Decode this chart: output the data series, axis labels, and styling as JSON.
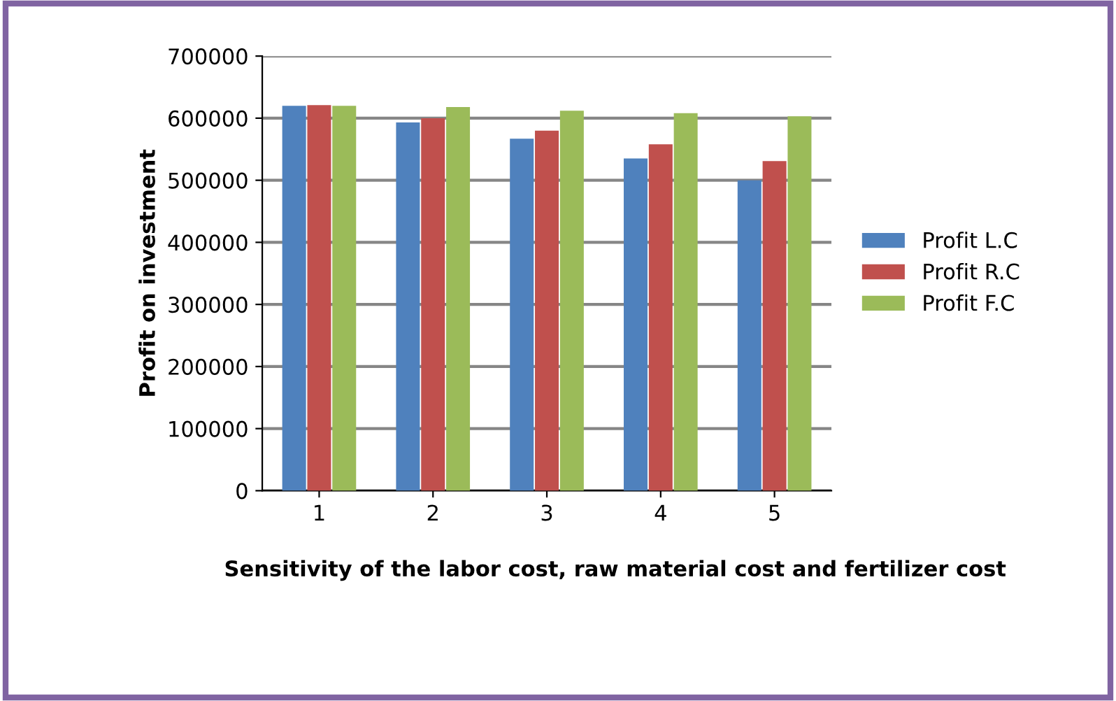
{
  "chart_data": {
    "type": "bar",
    "xlabel": "Sensitivity of the labor cost, raw material cost and fertilizer cost",
    "ylabel": "Profit on investment",
    "categories": [
      "1",
      "2",
      "3",
      "4",
      "5"
    ],
    "series": [
      {
        "name": "Profit L.C",
        "color": "#4f81bd",
        "values": [
          620000,
          593000,
          567000,
          535000,
          500000
        ]
      },
      {
        "name": "Profit R.C",
        "color": "#c0504d",
        "values": [
          621000,
          600000,
          580000,
          558000,
          531000
        ]
      },
      {
        "name": "Profit F.C",
        "color": "#9bbb59",
        "values": [
          620000,
          618000,
          612000,
          608000,
          603000
        ]
      }
    ],
    "ylim": [
      0,
      700000
    ],
    "yticks": [
      0,
      100000,
      200000,
      300000,
      400000,
      500000,
      600000,
      700000
    ],
    "grid": "y",
    "legend": "right"
  }
}
